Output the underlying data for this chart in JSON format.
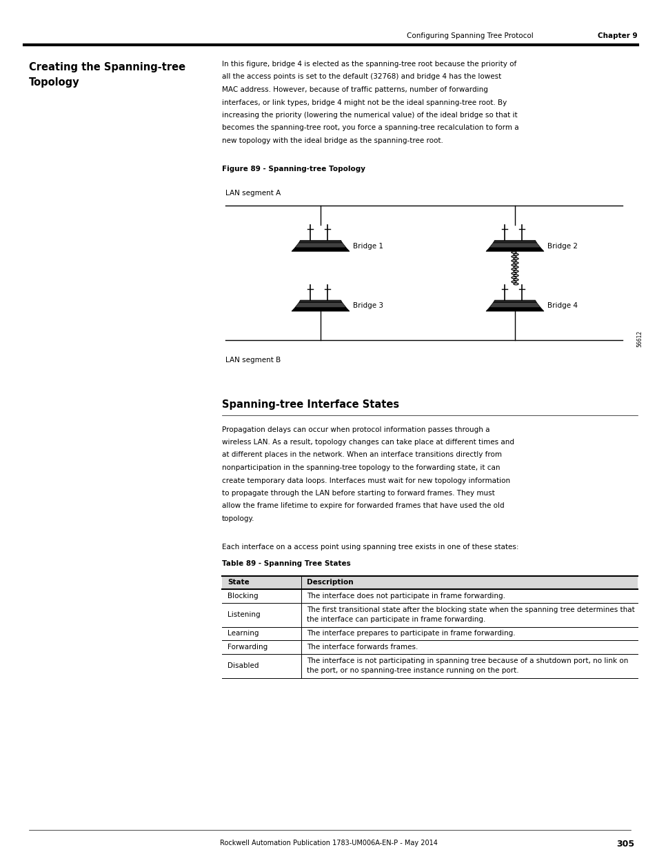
{
  "page_width": 9.54,
  "page_height": 12.35,
  "bg_color": "#ffffff",
  "header_text": "Configuring Spanning Tree Protocol",
  "header_chapter": "Chapter 9",
  "left_heading": "Creating the Spanning-tree\nTopology",
  "body_intro_lines": [
    "In this figure, bridge 4 is elected as the spanning-tree root because the priority of",
    "all the access points is set to the default (32768) and bridge 4 has the lowest",
    "MAC address. However, because of traffic patterns, number of forwarding",
    "interfaces, or link types, bridge 4 might not be the ideal spanning-tree root. By",
    "increasing the priority (lowering the numerical value) of the ideal bridge so that it",
    "becomes the spanning-tree root, you force a spanning-tree recalculation to form a",
    "new topology with the ideal bridge as the spanning-tree root."
  ],
  "fig_label": "Figure 89 - Spanning-tree Topology",
  "lan_a_label": "LAN segment A",
  "lan_b_label": "LAN segment B",
  "bridge_labels": [
    "Bridge 1",
    "Bridge 2",
    "Bridge 3",
    "Bridge 4"
  ],
  "section2_heading": "Spanning-tree Interface States",
  "section2_body_lines": [
    "Propagation delays can occur when protocol information passes through a",
    "wireless LAN. As a result, topology changes can take place at different times and",
    "at different places in the network. When an interface transitions directly from",
    "nonparticipation in the spanning-tree topology to the forwarding state, it can",
    "create temporary data loops. Interfaces must wait for new topology information",
    "to propagate through the LAN before starting to forward frames. They must",
    "allow the frame lifetime to expire for forwarded frames that have used the old",
    "topology."
  ],
  "section2_intro2": "Each interface on a access point using spanning tree exists in one of these states:",
  "table_label": "Table 89 - Spanning Tree States",
  "footer_text": "Rockwell Automation Publication 1783-UM006A-EN-P - May 2014",
  "footer_page": "305",
  "table_rows": [
    {
      "state": "State",
      "desc": "Description",
      "header": true
    },
    {
      "state": "Blocking",
      "desc": "The interface does not participate in frame forwarding.",
      "header": false
    },
    {
      "state": "Listening",
      "desc": "The first transitional state after the blocking state when the spanning tree determines that\nthe interface can participate in frame forwarding.",
      "header": false
    },
    {
      "state": "Learning",
      "desc": "The interface prepares to participate in frame forwarding.",
      "header": false
    },
    {
      "state": "Forwarding",
      "desc": "The interface forwards frames.",
      "header": false
    },
    {
      "state": "Disabled",
      "desc": "The interface is not participating in spanning tree because of a shutdown port, no link on\nthe port, or no spanning-tree instance running on the port.",
      "header": false
    }
  ]
}
